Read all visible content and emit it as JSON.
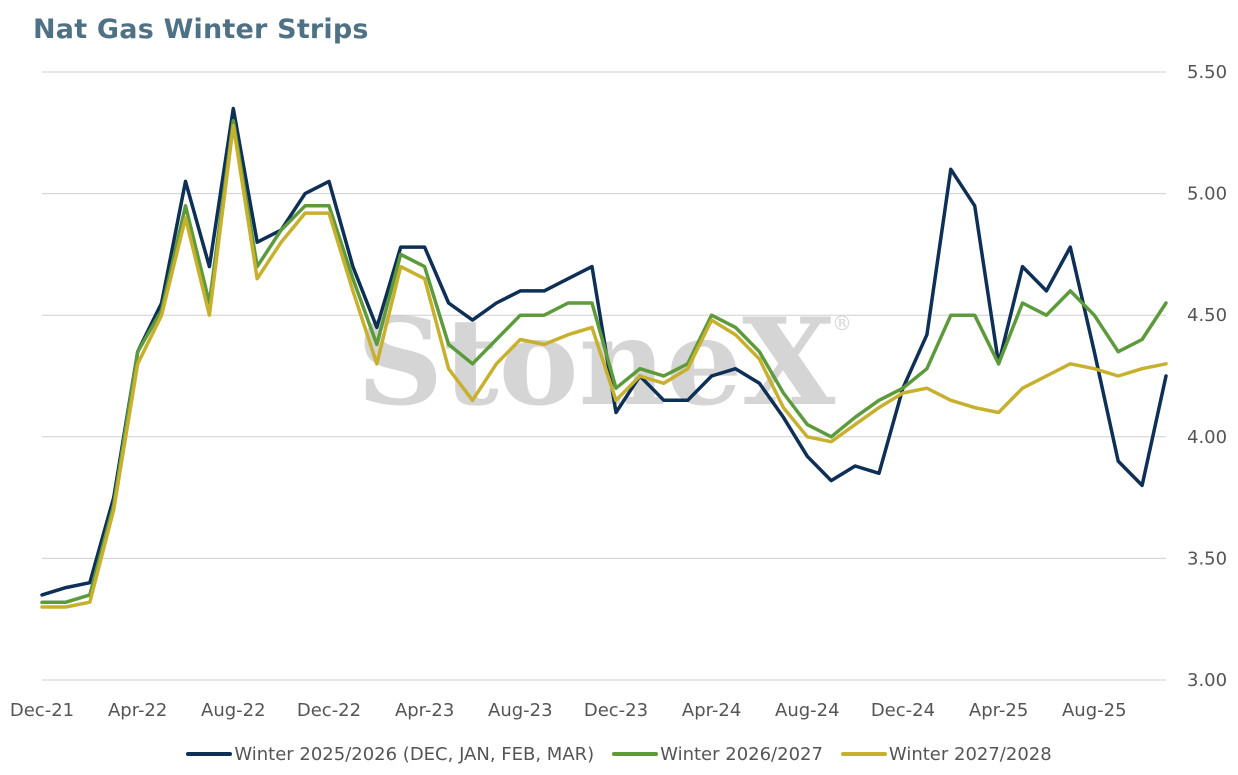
{
  "title": "Nat Gas Winter Strips",
  "watermark": "StoneX",
  "watermark_mark": "®",
  "colors": {
    "series1": "#0e2f56",
    "series2": "#5c9a3c",
    "series3": "#c8b02f",
    "grid": "#d0d0d0",
    "title": "#4f7186",
    "text": "#555555"
  },
  "chart_data": {
    "type": "line",
    "title": "Nat Gas Winter Strips",
    "xlabel": "",
    "ylabel": "",
    "y_axis_side": "right",
    "ylim": [
      3.0,
      5.5
    ],
    "y_ticks": [
      "3.00",
      "3.50",
      "4.00",
      "4.50",
      "5.00",
      "5.50"
    ],
    "x_ticks": [
      "Dec-21",
      "Apr-22",
      "Aug-22",
      "Dec-22",
      "Apr-23",
      "Aug-23",
      "Dec-23",
      "Apr-24",
      "Aug-24",
      "Dec-24",
      "Apr-25",
      "Aug-25"
    ],
    "grid": true,
    "legend": "bottom",
    "x": [
      "Dec-21",
      "Jan-22",
      "Feb-22",
      "Mar-22",
      "Apr-22",
      "May-22",
      "Jun-22",
      "Jul-22",
      "Aug-22",
      "Sep-22",
      "Oct-22",
      "Nov-22",
      "Dec-22",
      "Jan-23",
      "Feb-23",
      "Mar-23",
      "Apr-23",
      "May-23",
      "Jun-23",
      "Jul-23",
      "Aug-23",
      "Sep-23",
      "Oct-23",
      "Nov-23",
      "Dec-23",
      "Jan-24",
      "Feb-24",
      "Mar-24",
      "Apr-24",
      "May-24",
      "Jun-24",
      "Jul-24",
      "Aug-24",
      "Sep-24",
      "Oct-24",
      "Nov-24",
      "Dec-24",
      "Jan-25",
      "Feb-25",
      "Mar-25",
      "Apr-25",
      "May-25",
      "Jun-25",
      "Jul-25",
      "Aug-25",
      "Sep-25",
      "Oct-25",
      "Nov-25"
    ],
    "series": [
      {
        "name": "Winter 2025/2026 (DEC, JAN, FEB, MAR)",
        "values": [
          3.35,
          3.38,
          3.4,
          3.75,
          4.35,
          4.55,
          5.05,
          4.7,
          5.35,
          4.8,
          4.85,
          5.0,
          5.05,
          4.7,
          4.45,
          4.78,
          4.78,
          4.55,
          4.48,
          4.55,
          4.6,
          4.6,
          4.65,
          4.7,
          4.1,
          4.25,
          4.15,
          4.15,
          4.25,
          4.28,
          4.22,
          4.08,
          3.92,
          3.82,
          3.88,
          3.85,
          4.2,
          4.42,
          5.1,
          4.95,
          4.3,
          4.7,
          4.6,
          4.78,
          4.35,
          3.9,
          3.8,
          4.25
        ]
      },
      {
        "name": "Winter 2026/2027",
        "values": [
          3.32,
          3.32,
          3.35,
          3.72,
          4.35,
          4.52,
          4.95,
          4.55,
          5.3,
          4.7,
          4.85,
          4.95,
          4.95,
          4.65,
          4.38,
          4.75,
          4.7,
          4.38,
          4.3,
          4.4,
          4.5,
          4.5,
          4.55,
          4.55,
          4.2,
          4.28,
          4.25,
          4.3,
          4.5,
          4.45,
          4.35,
          4.18,
          4.05,
          4.0,
          4.08,
          4.15,
          4.2,
          4.28,
          4.5,
          4.5,
          4.3,
          4.55,
          4.5,
          4.6,
          4.5,
          4.35,
          4.4,
          4.55
        ]
      },
      {
        "name": "Winter 2027/2028",
        "values": [
          3.3,
          3.3,
          3.32,
          3.7,
          4.3,
          4.5,
          4.9,
          4.5,
          5.28,
          4.65,
          4.8,
          4.92,
          4.92,
          4.6,
          4.3,
          4.7,
          4.65,
          4.28,
          4.15,
          4.3,
          4.4,
          4.38,
          4.42,
          4.45,
          4.15,
          4.25,
          4.22,
          4.28,
          4.48,
          4.42,
          4.32,
          4.12,
          4.0,
          3.98,
          4.05,
          4.12,
          4.18,
          4.2,
          4.15,
          4.12,
          4.1,
          4.2,
          4.25,
          4.3,
          4.28,
          4.25,
          4.28,
          4.3
        ]
      }
    ]
  }
}
